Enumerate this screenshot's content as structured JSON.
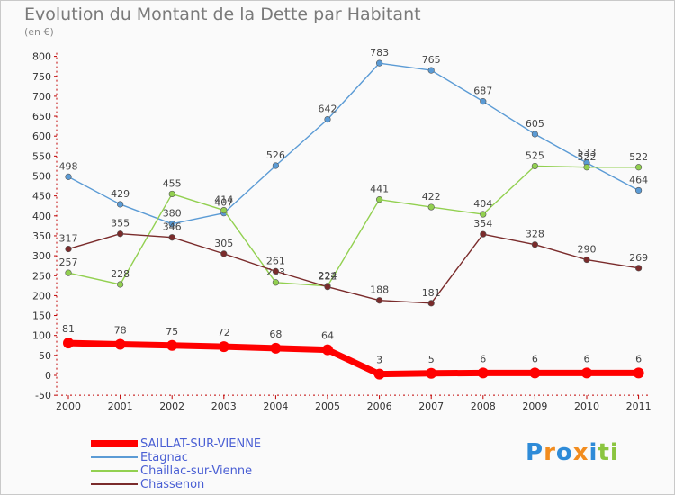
{
  "chart_data": {
    "type": "line",
    "title": "Evolution du Montant de la Dette par Habitant",
    "subtitle": "(en €)",
    "x": [
      "2000",
      "2001",
      "2002",
      "2003",
      "2004",
      "2005",
      "2006",
      "2007",
      "2008",
      "2009",
      "2010",
      "2011"
    ],
    "ylim": [
      -50,
      800
    ],
    "yticks": [
      -50,
      0,
      50,
      100,
      150,
      200,
      250,
      300,
      350,
      400,
      450,
      500,
      550,
      600,
      650,
      700,
      750,
      800
    ],
    "grid": false,
    "legend_position": "bottom-left",
    "series": [
      {
        "name": "SAILLAT-SUR-VIENNE",
        "color": "#ff0000",
        "values": [
          81,
          78,
          75,
          72,
          68,
          64,
          3,
          5,
          6,
          6,
          6,
          6
        ]
      },
      {
        "name": "Etagnac",
        "color": "#5b9bd5",
        "values": [
          498,
          429,
          380,
          407,
          526,
          642,
          783,
          765,
          687,
          605,
          533,
          464
        ]
      },
      {
        "name": "Chaillac-sur-Vienne",
        "color": "#92d050",
        "values": [
          257,
          228,
          455,
          414,
          233,
          224,
          441,
          422,
          404,
          525,
          522,
          522
        ]
      },
      {
        "name": "Chassenon",
        "color": "#7a2b2b",
        "values": [
          317,
          355,
          346,
          305,
          261,
          222,
          188,
          181,
          354,
          328,
          290,
          269
        ]
      }
    ]
  },
  "logo": {
    "text": "Proxiti",
    "letters": [
      "P",
      "r",
      "o",
      "x",
      "i",
      "t",
      "i"
    ],
    "colors": [
      "#2e8bd8",
      "#f28c1e",
      "#2e8bd8",
      "#f28c1e",
      "#2e8bd8",
      "#8bc53f",
      "#8bc53f"
    ]
  }
}
